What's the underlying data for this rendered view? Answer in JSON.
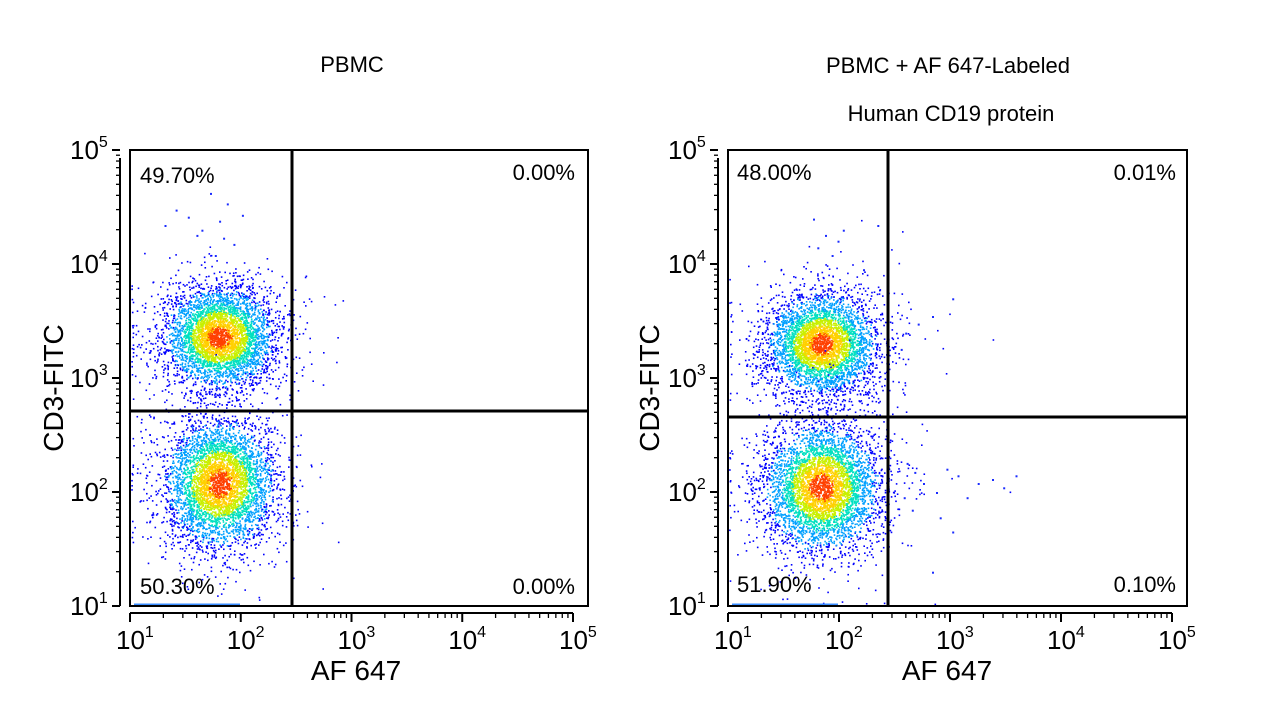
{
  "figure": {
    "panels": [
      {
        "title_lines": [
          "PBMC"
        ],
        "xlabel": "AF 647",
        "ylabel": "CD3-FITC",
        "quadrants": {
          "UL": "49.70%",
          "UR": "0.00%",
          "LL": "50.30%",
          "LR": "0.00%"
        }
      },
      {
        "title_lines": [
          "PBMC + AF 647-Labeled",
          "Human CD19 protein"
        ],
        "xlabel": "AF 647",
        "ylabel": "CD3-FITC",
        "quadrants": {
          "UL": "48.00%",
          "UR": "0.01%",
          "LL": "51.90%",
          "LR": "0.10%"
        }
      }
    ]
  },
  "chart_data": [
    {
      "type": "scatter",
      "subtype": "flow-cytometry-density-dot-plot",
      "title": "PBMC",
      "xlabel": "AF 647",
      "ylabel": "CD3-FITC",
      "xscale": "log",
      "yscale": "log",
      "xlim": [
        10,
        100000
      ],
      "ylim": [
        10,
        100000
      ],
      "xticks": [
        10,
        100,
        1000,
        10000,
        100000
      ],
      "yticks": [
        10,
        100,
        1000,
        10000,
        100000
      ],
      "gates": {
        "x": 300,
        "y": 550
      },
      "quadrant_percentages": {
        "upper_left": 49.7,
        "upper_right": 0.0,
        "lower_left": 50.3,
        "lower_right": 0.0
      },
      "populations": [
        {
          "name_hint": "upper cluster",
          "center_x": 60,
          "center_y": 2300,
          "spread_decades_x": 0.24,
          "spread_decades_y": 0.22,
          "count": 4200
        },
        {
          "name_hint": "lower cluster",
          "center_x": 60,
          "center_y": 120,
          "spread_decades_x": 0.24,
          "spread_decades_y": 0.28,
          "count": 4300
        }
      ],
      "sparse_points": [
        [
          25,
          30000
        ],
        [
          50,
          42000
        ],
        [
          42,
          20000
        ],
        [
          60,
          24000
        ],
        [
          70,
          34000
        ],
        [
          38,
          18000
        ],
        [
          80,
          15000
        ],
        [
          20,
          22000
        ],
        [
          95,
          27000
        ],
        [
          55,
          12000
        ],
        [
          65,
          17000
        ],
        [
          32,
          26000
        ]
      ],
      "color_scale": [
        "#0000ff",
        "#00a0ff",
        "#00e0c0",
        "#c8f000",
        "#ffd000",
        "#ff4000"
      ]
    },
    {
      "type": "scatter",
      "subtype": "flow-cytometry-density-dot-plot",
      "title": "PBMC + AF 647-Labeled Human CD19 protein",
      "xlabel": "AF 647",
      "ylabel": "CD3-FITC",
      "xscale": "log",
      "yscale": "log",
      "xlim": [
        10,
        100000
      ],
      "ylim": [
        10,
        100000
      ],
      "xticks": [
        10,
        100,
        1000,
        10000,
        100000
      ],
      "yticks": [
        10,
        100,
        1000,
        10000,
        100000
      ],
      "gates": {
        "x": 280,
        "y": 500
      },
      "quadrant_percentages": {
        "upper_left": 48.0,
        "upper_right": 0.01,
        "lower_left": 51.9,
        "lower_right": 0.1
      },
      "populations": [
        {
          "name_hint": "upper cluster",
          "center_x": 65,
          "center_y": 2000,
          "spread_decades_x": 0.24,
          "spread_decades_y": 0.22,
          "count": 4000
        },
        {
          "name_hint": "lower cluster",
          "center_x": 65,
          "center_y": 110,
          "spread_decades_x": 0.25,
          "spread_decades_y": 0.28,
          "count": 4400
        }
      ],
      "sparse_points": [
        [
          55,
          25000
        ],
        [
          70,
          18000
        ],
        [
          80,
          12000
        ],
        [
          90,
          16000
        ],
        [
          150,
          9000
        ],
        [
          200,
          22000
        ],
        [
          60,
          14000
        ],
        [
          100,
          20000
        ],
        [
          350,
          2500
        ],
        [
          450,
          3000
        ],
        [
          600,
          3500
        ],
        [
          900,
          5000
        ],
        [
          320,
          1800
        ],
        [
          360,
          180
        ],
        [
          420,
          150
        ],
        [
          500,
          120
        ],
        [
          650,
          100
        ],
        [
          800,
          160
        ],
        [
          1000,
          140
        ],
        [
          1200,
          90
        ],
        [
          1500,
          120
        ],
        [
          2000,
          130
        ],
        [
          2500,
          110
        ],
        [
          3200,
          140
        ],
        [
          700,
          60
        ],
        [
          900,
          45
        ],
        [
          600,
          20
        ],
        [
          400,
          70
        ],
        [
          340,
          90
        ]
      ],
      "color_scale": [
        "#0000ff",
        "#00a0ff",
        "#00e0c0",
        "#c8f000",
        "#ffd000",
        "#ff4000"
      ]
    }
  ]
}
